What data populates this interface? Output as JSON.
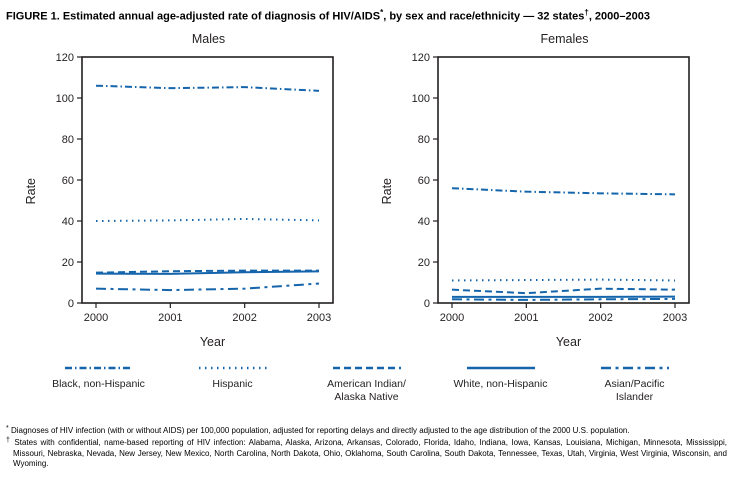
{
  "title": {
    "p1": "FIGURE 1. Estimated annual age-adjusted rate of diagnosis of HIV/AIDS",
    "sup1": "*",
    "p2": ", by sex and race/ethnicity — 32 states",
    "sup2": "†",
    "p3": ", 2000–2003"
  },
  "colors": {
    "line": "#1565ac",
    "axis": "#231f20"
  },
  "chart_data": [
    {
      "type": "line",
      "title": "Males",
      "xlabel": "Year",
      "ylabel": "Rate",
      "x": [
        2000,
        2001,
        2002,
        2003
      ],
      "ylim": [
        0,
        120
      ],
      "ytick_step": 20,
      "grid": false,
      "legend_position": "bottom-shared",
      "series": [
        {
          "name": "Black, non-Hispanic",
          "values": [
            106,
            104.8,
            105.3,
            103.5
          ],
          "dash": "7 3 1.5 3"
        },
        {
          "name": "Hispanic",
          "values": [
            40,
            40.3,
            41,
            40.3
          ],
          "dash": "1.5 4.5"
        },
        {
          "name": "American Indian/Alaska Native",
          "values": [
            14.8,
            15.5,
            15.8,
            15.8
          ],
          "dash": "7 4"
        },
        {
          "name": "White, non-Hispanic",
          "values": [
            14.3,
            14.2,
            15,
            15.4
          ],
          "dash": ""
        },
        {
          "name": "Asian/Pacific Islander",
          "values": [
            7,
            6.3,
            7,
            9.5
          ],
          "dash": "10 4.5 3 4.5"
        }
      ]
    },
    {
      "type": "line",
      "title": "Females",
      "xlabel": "Year",
      "ylabel": "Rate",
      "x": [
        2000,
        2001,
        2002,
        2003
      ],
      "ylim": [
        0,
        120
      ],
      "ytick_step": 20,
      "grid": false,
      "legend_position": "bottom-shared",
      "series": [
        {
          "name": "Black, non-Hispanic",
          "values": [
            56,
            54.3,
            53.5,
            53
          ],
          "dash": "7 3 1.5 3"
        },
        {
          "name": "Hispanic",
          "values": [
            11,
            11.2,
            11.4,
            11
          ],
          "dash": "1.5 4.5"
        },
        {
          "name": "American Indian/Alaska Native",
          "values": [
            6.5,
            4.8,
            7,
            6.5
          ],
          "dash": "7 4"
        },
        {
          "name": "White, non-Hispanic",
          "values": [
            3,
            3,
            3,
            3.1
          ],
          "dash": ""
        },
        {
          "name": "Asian/Pacific Islander",
          "values": [
            1.8,
            1.5,
            1.8,
            2
          ],
          "dash": "10 4.5 3 4.5"
        }
      ]
    }
  ],
  "legend": [
    {
      "label": "Black, non-Hispanic",
      "dash": "7 3 1.5 3"
    },
    {
      "label": "Hispanic",
      "dash": "1.5 4.5"
    },
    {
      "label": "American Indian/\nAlaska Native",
      "dash": "7 4"
    },
    {
      "label": "White, non-Hispanic",
      "dash": ""
    },
    {
      "label": "Asian/Pacific\nIslander",
      "dash": "10 4.5 3 4.5"
    }
  ],
  "footnotes": [
    {
      "marker": "*",
      "text": "Diagnoses of HIV infection (with or without AIDS) per 100,000 population, adjusted for reporting delays and directly adjusted to the age distribution of the 2000 U.S. population."
    },
    {
      "marker": "†",
      "text": "States with confidential, name-based reporting of HIV infection: Alabama, Alaska, Arizona, Arkansas, Colorado, Florida, Idaho, Indiana, Iowa, Kansas, Louisiana, Michigan, Minnesota, Mississippi, Missouri, Nebraska, Nevada, New Jersey, New Mexico, North Carolina, North Dakota, Ohio, Oklahoma, South Carolina, South Dakota, Tennessee, Texas, Utah, Virginia, West Virginia, Wisconsin, and Wyoming."
    }
  ]
}
